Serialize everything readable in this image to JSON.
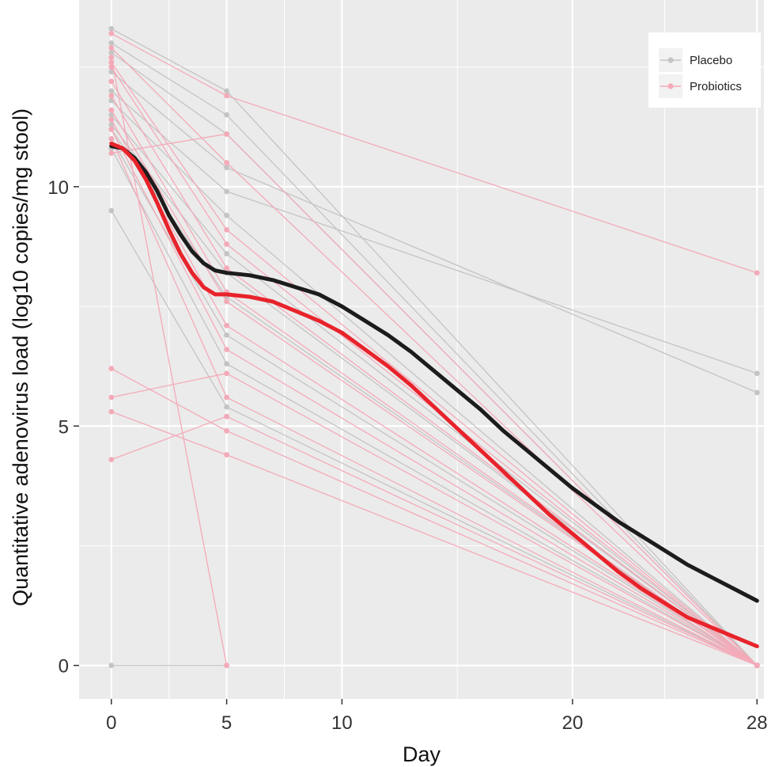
{
  "chart_data": {
    "type": "line",
    "title": "",
    "xlabel": "Day",
    "ylabel": "Quantitative adenovirus load (log10 copies/mg stool)",
    "xlim": [
      -1.4,
      28.3
    ],
    "ylim": [
      -0.7,
      13.9
    ],
    "x_ticks": [
      0,
      5,
      10,
      20,
      28
    ],
    "x_tick_labels": [
      "0",
      "5",
      "10",
      "20",
      "28"
    ],
    "y_ticks": [
      0,
      5,
      10
    ],
    "y_tick_labels": [
      "0",
      "5",
      "10"
    ],
    "x_minor_gridlines": [
      2.5,
      7.5,
      15,
      24
    ],
    "y_minor_gridlines": [
      2.5,
      7.5,
      12.5
    ],
    "grid": true,
    "legend_position": "top-right",
    "legend": [
      {
        "label": "Placebo",
        "color": "#c4c4c4"
      },
      {
        "label": "Probiotics",
        "color": "#f4aab8"
      }
    ],
    "colors": {
      "panel_background": "#ebebeb",
      "gridline": "#ffffff",
      "placebo_individual": "#c4c4c4",
      "probiotics_individual": "#f4aab8",
      "placebo_smooth": "#1c1c1c",
      "probiotics_smooth": "#e8232b"
    },
    "individual_series": [
      {
        "group": "Placebo",
        "x": [
          0,
          5,
          28
        ],
        "y": [
          13.3,
          12.0,
          0
        ]
      },
      {
        "group": "Placebo",
        "x": [
          0,
          5,
          28
        ],
        "y": [
          13.0,
          11.5,
          0
        ]
      },
      {
        "group": "Placebo",
        "x": [
          0,
          5,
          28
        ],
        "y": [
          12.8,
          11.1,
          0
        ]
      },
      {
        "group": "Placebo",
        "x": [
          0,
          5,
          28
        ],
        "y": [
          12.4,
          10.4,
          5.7
        ]
      },
      {
        "group": "Placebo",
        "x": [
          0,
          5,
          28
        ],
        "y": [
          12.0,
          9.9,
          6.1
        ]
      },
      {
        "group": "Placebo",
        "x": [
          0,
          5,
          28
        ],
        "y": [
          11.8,
          9.4,
          0
        ]
      },
      {
        "group": "Placebo",
        "x": [
          0,
          5,
          28
        ],
        "y": [
          11.5,
          8.6,
          0
        ]
      },
      {
        "group": "Placebo",
        "x": [
          0,
          5,
          28
        ],
        "y": [
          11.3,
          8.2,
          0
        ]
      },
      {
        "group": "Placebo",
        "x": [
          0,
          5,
          28
        ],
        "y": [
          11.2,
          7.7,
          0
        ]
      },
      {
        "group": "Placebo",
        "x": [
          0,
          5,
          28
        ],
        "y": [
          11.0,
          6.9,
          0
        ]
      },
      {
        "group": "Placebo",
        "x": [
          0,
          5,
          28
        ],
        "y": [
          10.8,
          6.3,
          0
        ]
      },
      {
        "group": "Placebo",
        "x": [
          0,
          5,
          28
        ],
        "y": [
          9.5,
          5.4,
          0
        ]
      },
      {
        "group": "Placebo",
        "x": [
          0,
          5
        ],
        "y": [
          0,
          0
        ]
      },
      {
        "group": "Probiotics",
        "x": [
          0,
          5,
          28
        ],
        "y": [
          13.2,
          11.9,
          8.2
        ]
      },
      {
        "group": "Probiotics",
        "x": [
          0,
          5,
          28
        ],
        "y": [
          12.9,
          10.5,
          0
        ]
      },
      {
        "group": "Probiotics",
        "x": [
          0,
          5,
          28
        ],
        "y": [
          12.6,
          9.1,
          0
        ]
      },
      {
        "group": "Probiotics",
        "x": [
          0,
          5,
          28
        ],
        "y": [
          12.5,
          8.8,
          0
        ]
      },
      {
        "group": "Probiotics",
        "x": [
          0,
          5,
          28
        ],
        "y": [
          12.2,
          8.3,
          0
        ]
      },
      {
        "group": "Probiotics",
        "x": [
          0,
          5,
          28
        ],
        "y": [
          11.9,
          7.8,
          0
        ]
      },
      {
        "group": "Probiotics",
        "x": [
          0,
          5,
          28
        ],
        "y": [
          11.6,
          7.6,
          0
        ]
      },
      {
        "group": "Probiotics",
        "x": [
          0,
          5,
          28
        ],
        "y": [
          11.4,
          7.1,
          0
        ]
      },
      {
        "group": "Probiotics",
        "x": [
          0,
          5,
          28
        ],
        "y": [
          11.2,
          6.6,
          0
        ]
      },
      {
        "group": "Probiotics",
        "x": [
          0,
          5,
          28
        ],
        "y": [
          11.0,
          5.6,
          0
        ]
      },
      {
        "group": "Probiotics",
        "x": [
          0,
          5,
          28
        ],
        "y": [
          10.7,
          11.1,
          0
        ]
      },
      {
        "group": "Probiotics",
        "x": [
          0,
          5,
          28
        ],
        "y": [
          6.2,
          4.9,
          0
        ]
      },
      {
        "group": "Probiotics",
        "x": [
          0,
          5,
          28
        ],
        "y": [
          5.6,
          6.1,
          0
        ]
      },
      {
        "group": "Probiotics",
        "x": [
          0,
          5,
          28
        ],
        "y": [
          5.3,
          4.4,
          0
        ]
      },
      {
        "group": "Probiotics",
        "x": [
          0,
          5,
          28
        ],
        "y": [
          4.3,
          5.2,
          0
        ]
      },
      {
        "group": "Probiotics",
        "x": [
          0,
          5
        ],
        "y": [
          12.7,
          0
        ]
      }
    ],
    "smooth_series": [
      {
        "name": "Placebo",
        "x": [
          0,
          0.5,
          1,
          1.5,
          2,
          2.5,
          3,
          3.5,
          4,
          4.5,
          5,
          6,
          7,
          8,
          9,
          10,
          11,
          12,
          13,
          14,
          15,
          16,
          17,
          18,
          19,
          20,
          21,
          22,
          23,
          24,
          25,
          26,
          27,
          28
        ],
        "y": [
          10.85,
          10.8,
          10.6,
          10.3,
          9.9,
          9.4,
          9.0,
          8.65,
          8.4,
          8.25,
          8.2,
          8.15,
          8.05,
          7.9,
          7.75,
          7.5,
          7.2,
          6.9,
          6.55,
          6.15,
          5.75,
          5.35,
          4.9,
          4.5,
          4.1,
          3.7,
          3.35,
          3.0,
          2.7,
          2.4,
          2.1,
          1.85,
          1.6,
          1.35
        ]
      },
      {
        "name": "Probiotics",
        "x": [
          0,
          0.5,
          1,
          1.5,
          2,
          2.5,
          3,
          3.5,
          4,
          4.5,
          5,
          6,
          7,
          8,
          9,
          10,
          11,
          12,
          13,
          14,
          15,
          16,
          17,
          18,
          19,
          20,
          21,
          22,
          23,
          24,
          25,
          26,
          27,
          28
        ],
        "y": [
          10.9,
          10.8,
          10.55,
          10.15,
          9.65,
          9.1,
          8.6,
          8.2,
          7.9,
          7.75,
          7.75,
          7.7,
          7.6,
          7.4,
          7.2,
          6.95,
          6.6,
          6.25,
          5.85,
          5.4,
          4.95,
          4.5,
          4.05,
          3.6,
          3.15,
          2.75,
          2.35,
          1.95,
          1.6,
          1.3,
          1.0,
          0.8,
          0.6,
          0.4
        ]
      }
    ]
  }
}
